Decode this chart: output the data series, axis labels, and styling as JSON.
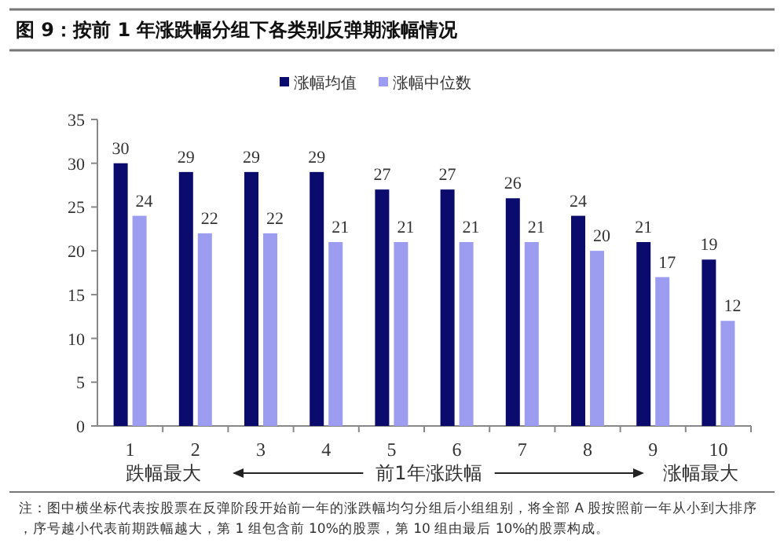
{
  "chart_data": {
    "type": "bar",
    "title": "图 9：按前 1 年涨跌幅分组下各类别反弹期涨幅情况",
    "categories": [
      "1",
      "2",
      "3",
      "4",
      "5",
      "6",
      "7",
      "8",
      "9",
      "10"
    ],
    "series": [
      {
        "name": "涨幅均值",
        "color": "#0b0b6e",
        "values": [
          30,
          29,
          29,
          29,
          27,
          27,
          26,
          24,
          21,
          19
        ]
      },
      {
        "name": "涨幅中位数",
        "color": "#9c9cf0",
        "values": [
          24,
          22,
          22,
          21,
          21,
          21,
          21,
          20,
          17,
          12
        ]
      }
    ],
    "ylim": [
      0,
      35
    ],
    "yticks": [
      0,
      5,
      10,
      15,
      20,
      25,
      30,
      35
    ],
    "data_labels": true,
    "legend": "top",
    "grid": false,
    "xlabel": "前1年涨跌幅",
    "annotations": [
      "跌幅最大",
      "涨幅最大",
      "注：图中横坐标代表按股票在反弹阶段开始前一年的涨跌幅均匀分组后小组组别，将全部 A 股按照前一年从小到大排序，序号越小代表前期跌幅越大，第 1 组包含前 10%的股票，第 10 组由最后 10%的股票构成。"
    ]
  }
}
